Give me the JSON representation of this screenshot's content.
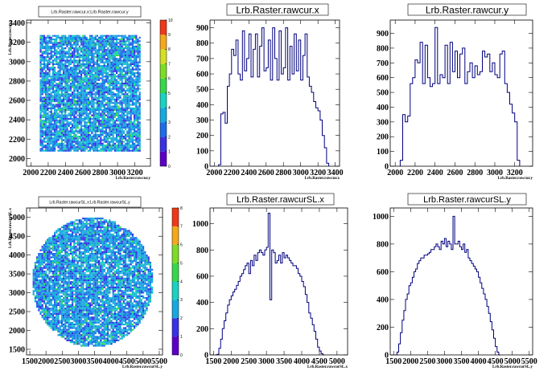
{
  "chart_data": [
    {
      "id": "h2_rawcur",
      "type": "heatmap",
      "title": "Lrb.Raster.rawcur.x:Lrb.Raster.rawcur.y",
      "xlabel": "Lrb.Raster.rawcur.y",
      "ylabel": "Lrb.Raster.rawcur.x",
      "xlim": [
        1950,
        3380
      ],
      "ylim": [
        1920,
        3430
      ],
      "xticks": [
        2000,
        2200,
        2400,
        2600,
        2800,
        3000,
        3200
      ],
      "yticks": [
        2000,
        2200,
        2400,
        2600,
        2800,
        3000,
        3200,
        3400
      ],
      "shape": "rectangle",
      "region": {
        "x": [
          2100,
          3250
        ],
        "y": [
          2080,
          3280
        ]
      },
      "zticks": [
        0,
        1,
        2,
        3,
        4,
        5,
        6,
        7,
        8,
        9,
        10
      ],
      "zlim": [
        0,
        10
      ]
    },
    {
      "id": "h1_rawcur_x",
      "type": "line",
      "title": "Lrb.Raster.rawcur.x",
      "xlabel": "Lrb.Raster.rawcur.x",
      "xlim": [
        1950,
        3450
      ],
      "ylim": [
        0,
        950
      ],
      "xticks": [
        2000,
        2200,
        2400,
        2600,
        2800,
        3000,
        3200,
        3400
      ],
      "yticks": [
        0,
        100,
        200,
        300,
        400,
        500,
        600,
        700,
        800,
        900
      ],
      "bin_start": 2050,
      "bin_width": 25,
      "values": [
        10,
        340,
        350,
        280,
        520,
        600,
        760,
        720,
        820,
        600,
        560,
        880,
        620,
        700,
        860,
        580,
        760,
        860,
        580,
        780,
        900,
        620,
        640,
        820,
        560,
        900,
        700,
        560,
        880,
        600,
        640,
        900,
        560,
        780,
        600,
        860,
        620,
        820,
        560,
        720,
        860,
        580,
        520,
        480,
        420,
        380,
        360,
        300,
        200,
        120,
        20
      ]
    },
    {
      "id": "h1_rawcur_y",
      "type": "line",
      "title": "Lrb.Raster.rawcur.y",
      "xlabel": "Lrb.Raster.rawcur.y",
      "xlim": [
        1950,
        3380
      ],
      "ylim": [
        0,
        990
      ],
      "xticks": [
        2000,
        2200,
        2400,
        2600,
        2800,
        3000,
        3200
      ],
      "yticks": [
        0,
        100,
        200,
        300,
        400,
        500,
        600,
        700,
        800,
        900
      ],
      "bin_start": 2050,
      "bin_width": 25,
      "values": [
        40,
        350,
        300,
        340,
        560,
        600,
        720,
        700,
        840,
        560,
        820,
        600,
        540,
        560,
        940,
        560,
        620,
        600,
        820,
        560,
        840,
        640,
        780,
        600,
        760,
        800,
        560,
        640,
        700,
        600,
        680,
        620,
        640,
        780,
        740,
        760,
        640,
        700,
        620,
        600,
        760,
        780,
        560,
        500,
        420,
        360,
        300,
        40
      ]
    },
    {
      "id": "h2_rawcurSL",
      "type": "heatmap",
      "title": "Lrb.Raster.rawcurSL.x:Lrb.Raster.rawcurSL.y",
      "xlabel": "Lrb.Raster.rawcurSL.y",
      "ylabel": "Lrb.Raster.rawcurSL.x",
      "xlim": [
        1400,
        5600
      ],
      "ylim": [
        1350,
        5250
      ],
      "xticks": [
        1500,
        2000,
        2500,
        3000,
        3500,
        4000,
        4500,
        5000,
        5500
      ],
      "yticks": [
        1500,
        2000,
        2500,
        3000,
        3500,
        4000,
        4500,
        5000
      ],
      "shape": "ellipse",
      "region": {
        "cx": 3420,
        "cy": 3300,
        "rx": 1870,
        "ry": 1720
      },
      "zticks": [
        0,
        1,
        2,
        3,
        4,
        5,
        6,
        7,
        8
      ],
      "zlim": [
        0,
        8
      ]
    },
    {
      "id": "h1_rawcurSL_x",
      "type": "line",
      "title": "Lrb.Raster.rawcurSL.x",
      "xlabel": "Lrb.Raster.rawcurSL.x",
      "xlim": [
        1400,
        5300
      ],
      "ylim": [
        0,
        1120
      ],
      "xticks": [
        1500,
        2000,
        2500,
        3000,
        3500,
        4000,
        4500,
        5000
      ],
      "yticks": [
        0,
        200,
        400,
        600,
        800,
        1000
      ],
      "bin_start": 1550,
      "bin_width": 50,
      "values": [
        0,
        5,
        50,
        120,
        200,
        260,
        320,
        380,
        420,
        450,
        480,
        500,
        530,
        560,
        600,
        620,
        650,
        680,
        700,
        620,
        720,
        680,
        760,
        720,
        780,
        800,
        780,
        760,
        800,
        820,
        1080,
        420,
        800,
        780,
        700,
        720,
        760,
        700,
        780,
        740,
        760,
        740,
        720,
        700,
        680,
        680,
        660,
        620,
        600,
        560,
        520,
        460,
        400,
        320,
        280,
        230,
        180,
        120,
        60,
        30,
        10,
        0
      ]
    },
    {
      "id": "h1_rawcurSL_y",
      "type": "line",
      "title": "Lrb.Raster.rawcurSL.y",
      "xlabel": "Lrb.Raster.rawcurSL.y",
      "xlim": [
        1400,
        5600
      ],
      "ylim": [
        0,
        1060
      ],
      "xticks": [
        1500,
        2000,
        2500,
        3000,
        3500,
        4000,
        4500,
        5000,
        5500
      ],
      "yticks": [
        0,
        200,
        400,
        600,
        800,
        1000
      ],
      "bin_start": 1550,
      "bin_width": 50,
      "values": [
        0,
        20,
        80,
        160,
        250,
        320,
        400,
        440,
        500,
        520,
        560,
        600,
        620,
        660,
        680,
        700,
        700,
        720,
        720,
        730,
        740,
        760,
        760,
        780,
        800,
        780,
        760,
        820,
        800,
        840,
        780,
        820,
        800,
        760,
        1000,
        800,
        800,
        820,
        780,
        760,
        800,
        740,
        760,
        700,
        680,
        660,
        640,
        620,
        600,
        560,
        520,
        480,
        440,
        400,
        350,
        300,
        240,
        180,
        120,
        60,
        20,
        0
      ]
    }
  ],
  "colors": {
    "histline": "#00007f",
    "palette": [
      "#5b00c8",
      "#3a30e6",
      "#1d6ce8",
      "#16a9e0",
      "#18d2c2",
      "#2bd98a",
      "#36d84a",
      "#7ddc26",
      "#d3e024",
      "#f4a81a",
      "#f03818"
    ]
  }
}
